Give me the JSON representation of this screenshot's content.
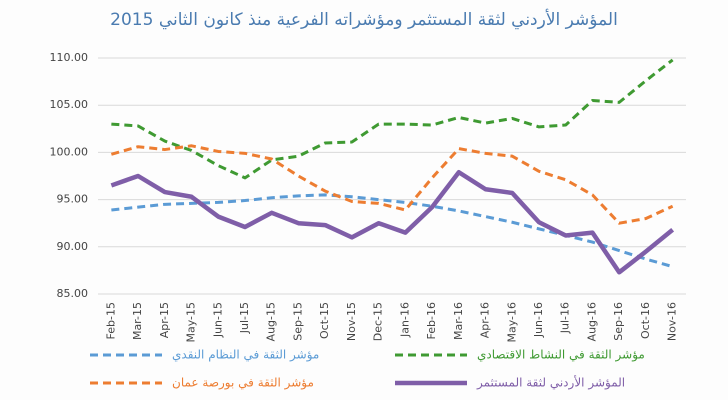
{
  "chart_data": {
    "type": "line",
    "title": "المؤشر الأردني لثقة المستثمر ومؤشراته الفرعية منذ كانون الثاني 2015",
    "categories": [
      "Feb-15",
      "Mar-15",
      "Apr-15",
      "May-15",
      "Jun-15",
      "Jul-15",
      "Aug-15",
      "Sep-15",
      "Oct-15",
      "Nov-15",
      "Dec-15",
      "Jan-16",
      "Feb-16",
      "Mar-16",
      "Apr-16",
      "May-16",
      "Jun-16",
      "Jul-16",
      "Aug-16",
      "Sep-16",
      "Oct-16",
      "Nov-16"
    ],
    "series": [
      {
        "name": "مؤشر الثقة في النظام النقدي",
        "color": "#5b9bd5",
        "dashed": true,
        "values": [
          93.9,
          94.2,
          94.5,
          94.6,
          94.7,
          94.9,
          95.2,
          95.4,
          95.5,
          95.3,
          95.0,
          94.7,
          94.3,
          93.8,
          93.2,
          92.6,
          91.9,
          91.2,
          90.5,
          89.6,
          88.7,
          87.9
        ]
      },
      {
        "name": "مؤشر الثقة في النشاط الاقتصادي",
        "color": "#3f9a32",
        "dashed": true,
        "values": [
          103.0,
          102.8,
          101.2,
          100.2,
          98.6,
          97.3,
          99.2,
          99.6,
          101.0,
          101.1,
          103.0,
          103.0,
          102.9,
          103.7,
          103.1,
          103.6,
          102.7,
          102.9,
          105.5,
          105.3,
          107.6,
          109.8
        ]
      },
      {
        "name": "مؤشر الثقة في بورصة عمان",
        "color": "#ed7d31",
        "dashed": true,
        "values": [
          99.8,
          100.6,
          100.3,
          100.7,
          100.1,
          99.9,
          99.3,
          97.5,
          95.9,
          94.8,
          94.6,
          93.9,
          97.3,
          100.4,
          99.9,
          99.6,
          98.0,
          97.1,
          95.5,
          92.5,
          93.0,
          94.3
        ]
      },
      {
        "name": "المؤشر الأردني لثقة المستثمر",
        "color": "#7f5ea8",
        "dashed": false,
        "values": [
          96.5,
          97.5,
          95.8,
          95.3,
          93.2,
          92.1,
          93.6,
          92.5,
          92.3,
          91.0,
          92.5,
          91.5,
          94.2,
          97.9,
          96.1,
          95.7,
          92.6,
          91.2,
          91.5,
          87.3,
          89.5,
          91.8
        ]
      }
    ],
    "ylim": [
      85,
      110
    ],
    "yticks": [
      {
        "value": 85,
        "label": "85.00"
      },
      {
        "value": 90,
        "label": "90.00"
      },
      {
        "value": 95,
        "label": "95.00"
      },
      {
        "value": 100,
        "label": "100.00"
      },
      {
        "value": 105,
        "label": "105.00"
      },
      {
        "value": 110,
        "label": "110.00"
      }
    ],
    "grid": true
  }
}
